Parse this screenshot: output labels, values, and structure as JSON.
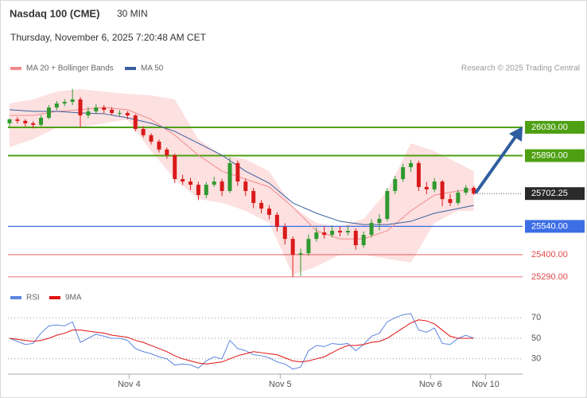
{
  "header": {
    "title": "Nasdaq 100 (CME)",
    "interval": "30 MIN",
    "timestamp": "Thursday, November 6, 2025 7:20:48 AM CET",
    "credit": "Research © 2025 Trading Central"
  },
  "chart_data": [
    {
      "type": "candlestick",
      "candles": {
        "open": [
          26050,
          26069,
          26062,
          26050,
          26042,
          26077,
          26128,
          26148,
          26156,
          26168,
          26089,
          26109,
          26128,
          26117,
          26101,
          26101,
          26089,
          26022,
          25991,
          25959,
          25920,
          25892,
          25774,
          25762,
          25746,
          25695,
          25746,
          25762,
          25715,
          25853,
          25762,
          25715,
          25656,
          25628,
          25597,
          25538,
          25478,
          25400,
          25407,
          25478,
          25510,
          25498,
          25518,
          25510,
          25518,
          25447,
          25498,
          25557,
          25577,
          25715,
          25774,
          25833,
          25853,
          25735,
          25723,
          25762,
          25675,
          25656,
          25707,
          25731
        ],
        "high": [
          26075,
          26080,
          26070,
          26060,
          26090,
          26140,
          26160,
          26170,
          26220,
          26180,
          26130,
          26145,
          26140,
          26130,
          26115,
          26110,
          26095,
          26035,
          26000,
          25970,
          25930,
          25900,
          25795,
          25780,
          25760,
          25760,
          25785,
          25775,
          25880,
          25865,
          25775,
          25730,
          25670,
          25645,
          25610,
          25555,
          25490,
          25430,
          25500,
          25535,
          25540,
          25545,
          25540,
          25545,
          25530,
          25515,
          25575,
          25600,
          25730,
          25790,
          25850,
          25870,
          25865,
          25760,
          25780,
          25770,
          25700,
          25720,
          25745,
          25740
        ],
        "low": [
          26035,
          26050,
          26035,
          26025,
          26035,
          26070,
          26115,
          26135,
          26140,
          26030,
          26075,
          26095,
          26100,
          26090,
          26085,
          26070,
          26010,
          25980,
          25945,
          25905,
          25875,
          25755,
          25745,
          25720,
          25670,
          25680,
          25735,
          25690,
          25705,
          25740,
          25690,
          25630,
          25605,
          25575,
          25515,
          25450,
          25290,
          25295,
          25395,
          25465,
          25480,
          25485,
          25490,
          25495,
          25425,
          25435,
          25485,
          25520,
          25565,
          25700,
          25760,
          25810,
          25715,
          25700,
          25710,
          25640,
          25640,
          25645,
          25695,
          25695
        ],
        "close": [
          26069,
          26062,
          26050,
          26042,
          26077,
          26128,
          26148,
          26156,
          26168,
          26089,
          26109,
          26128,
          26117,
          26101,
          26101,
          26089,
          26022,
          25991,
          25959,
          25920,
          25892,
          25774,
          25762,
          25746,
          25695,
          25746,
          25762,
          25715,
          25853,
          25762,
          25715,
          25656,
          25628,
          25597,
          25538,
          25478,
          25400,
          25407,
          25478,
          25510,
          25498,
          25518,
          25510,
          25518,
          25447,
          25498,
          25557,
          25577,
          25715,
          25774,
          25833,
          25853,
          25735,
          25723,
          25762,
          25675,
          25656,
          25707,
          25731,
          25702.25
        ]
      },
      "up_color": "#2f9a2f",
      "down_color": "#d91a1a",
      "series_x": [
        0,
        3,
        6,
        9,
        12,
        15,
        18,
        21,
        24,
        27,
        30,
        33,
        36,
        39,
        42,
        45,
        48,
        51,
        54,
        57,
        59
      ],
      "series": [
        {
          "name": "MA 20 + Bollinger Bands",
          "color": "#f28b8b",
          "band_color": "#fde0e0",
          "values": [
            26089,
            26089,
            26109,
            26117,
            26128,
            26117,
            26069,
            25991,
            25892,
            25813,
            25774,
            25735,
            25636,
            25518,
            25478,
            25478,
            25518,
            25617,
            25695,
            25715,
            25723
          ],
          "upper": [
            26148,
            26168,
            26207,
            26219,
            26207,
            26195,
            26188,
            26168,
            25971,
            25892,
            25872,
            25813,
            25636,
            25557,
            25538,
            25577,
            25715,
            25951,
            25912,
            25853,
            25813
          ],
          "lower": [
            25932,
            25971,
            26030,
            26030,
            26050,
            26069,
            25912,
            25774,
            25676,
            25656,
            25617,
            25557,
            25301,
            25341,
            25400,
            25400,
            25380,
            25361,
            25557,
            25617,
            25617
          ]
        },
        {
          "name": "MA 50",
          "color": "#3a5f9f",
          "values": [
            26117,
            26109,
            26109,
            26101,
            26097,
            26077,
            26050,
            26010,
            25951,
            25892,
            25813,
            25754,
            25656,
            25605,
            25565,
            25549,
            25549,
            25565,
            25605,
            25628,
            25644
          ]
        }
      ],
      "ylim": [
        25262,
        26270
      ],
      "xlim": [
        -0.2,
        65.2
      ],
      "levels": [
        {
          "value": 26030,
          "label": "26030.00",
          "color": "#4ea012",
          "style": "box"
        },
        {
          "value": 25890,
          "label": "25890.00",
          "color": "#4ea012",
          "style": "box"
        },
        {
          "value": 25540,
          "label": "25540.00",
          "color": "#3d6ee6",
          "style": "box"
        },
        {
          "value": 25702.25,
          "color": "#2a2a2a",
          "style": "current"
        },
        {
          "value": 25400,
          "label": "25400.00",
          "color": "#e04a4a",
          "style": "text"
        },
        {
          "value": 25290,
          "label": "25290.00",
          "color": "#e04a4a",
          "style": "text"
        }
      ]
    },
    {
      "type": "line",
      "x": [
        0,
        1,
        2,
        3,
        4,
        5,
        6,
        7,
        8,
        9,
        10,
        11,
        12,
        13,
        14,
        15,
        16,
        17,
        18,
        19,
        20,
        21,
        22,
        23,
        24,
        25,
        26,
        27,
        28,
        29,
        30,
        31,
        32,
        33,
        34,
        35,
        36,
        37,
        38,
        39,
        40,
        41,
        42,
        43,
        44,
        45,
        46,
        47,
        48,
        49,
        50,
        51,
        52,
        53,
        54,
        55,
        56,
        57,
        58,
        59
      ],
      "series": [
        {
          "name": "RSI",
          "color": "#5b86e0",
          "values": [
            50,
            47,
            44,
            45,
            55,
            62,
            63,
            62,
            66,
            46,
            50,
            54,
            52,
            50,
            50,
            48,
            40,
            37,
            35,
            32,
            30,
            24,
            25,
            24,
            21,
            28,
            32,
            30,
            48,
            40,
            38,
            34,
            33,
            31,
            27,
            25,
            20,
            22,
            38,
            43,
            42,
            45,
            44,
            45,
            38,
            44,
            52,
            55,
            66,
            70,
            73,
            74,
            58,
            56,
            60,
            45,
            44,
            50,
            53,
            50
          ]
        },
        {
          "name": "9MA",
          "color": "#e01010",
          "values": [
            50,
            49,
            48,
            47,
            48,
            50,
            53,
            55,
            58,
            58,
            57,
            56,
            55,
            53,
            52,
            51,
            48,
            46,
            43,
            40,
            37,
            33,
            30,
            28,
            26,
            25,
            26,
            27,
            30,
            33,
            35,
            37,
            36,
            35,
            34,
            31,
            28,
            27,
            28,
            30,
            32,
            36,
            40,
            43,
            43,
            44,
            46,
            47,
            50,
            55,
            60,
            65,
            68,
            67,
            64,
            58,
            52,
            50,
            50,
            50
          ]
        }
      ],
      "ylim": [
        19,
        81
      ],
      "yticks": [
        30,
        50,
        70
      ],
      "grid": true,
      "xlim": [
        -0.2,
        65.2
      ],
      "xticks": [
        {
          "value": 15.2,
          "label": "Nov 4"
        },
        {
          "value": 34.4,
          "label": "Nov 5"
        },
        {
          "value": 53.5,
          "label": "Nov 6"
        },
        {
          "value": 60.5,
          "label": "Nov 10"
        }
      ]
    }
  ]
}
